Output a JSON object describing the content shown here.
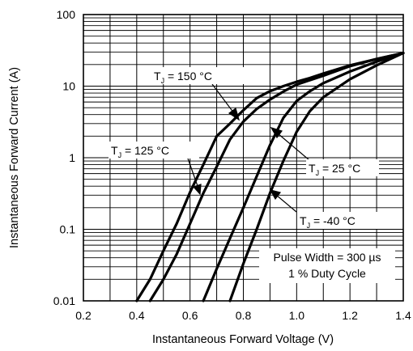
{
  "chart_data": {
    "type": "line",
    "xlabel": "Instantaneous Forward Voltage (V)",
    "ylabel": "Instantaneous Forward Current (A)",
    "xlim": [
      0.2,
      1.4
    ],
    "ylim": [
      0.01,
      100
    ],
    "yscale": "log",
    "x_ticks": [
      "0.2",
      "0.4",
      "0.6",
      "0.8",
      "1.0",
      "1.2",
      "1.4"
    ],
    "y_ticks": [
      "0.01",
      "0.1",
      "1",
      "10",
      "100"
    ],
    "grid": true,
    "series": [
      {
        "name": "TJ = 150 °C",
        "x": [
          0.4,
          0.45,
          0.5,
          0.55,
          0.6,
          0.65,
          0.7,
          0.75,
          0.8,
          0.85,
          0.9,
          0.95,
          1.0,
          1.05,
          1.1,
          1.2,
          1.3,
          1.4
        ],
        "y": [
          0.01,
          0.02,
          0.05,
          0.12,
          0.33,
          0.8,
          2.0,
          3.0,
          4.6,
          6.8,
          8.5,
          10.0,
          11.5,
          13.0,
          15.0,
          19.5,
          24.0,
          29.0
        ]
      },
      {
        "name": "TJ = 125 °C",
        "x": [
          0.45,
          0.5,
          0.55,
          0.6,
          0.65,
          0.7,
          0.75,
          0.8,
          0.85,
          0.9,
          0.95,
          1.0,
          1.1,
          1.2,
          1.3,
          1.4
        ],
        "y": [
          0.01,
          0.02,
          0.045,
          0.12,
          0.32,
          0.75,
          1.8,
          3.2,
          4.8,
          6.5,
          8.4,
          10.5,
          14.0,
          19.0,
          24.0,
          29.0
        ]
      },
      {
        "name": "TJ = 25 °C",
        "x": [
          0.65,
          0.7,
          0.75,
          0.8,
          0.85,
          0.9,
          0.95,
          1.0,
          1.05,
          1.1,
          1.2,
          1.3,
          1.4
        ],
        "y": [
          0.01,
          0.028,
          0.075,
          0.2,
          0.55,
          1.5,
          3.6,
          6.2,
          8.5,
          11.0,
          16.0,
          22.0,
          29.0
        ]
      },
      {
        "name": "TJ = -40 °C",
        "x": [
          0.75,
          0.8,
          0.85,
          0.9,
          0.95,
          1.0,
          1.05,
          1.1,
          1.2,
          1.3,
          1.4
        ],
        "y": [
          0.01,
          0.033,
          0.1,
          0.32,
          0.9,
          2.3,
          4.5,
          7.0,
          12.5,
          19.5,
          29.0
        ]
      }
    ],
    "annotations": [
      {
        "main": "T",
        "sub": "J",
        "rest": " = 150 °C"
      },
      {
        "main": "T",
        "sub": "J",
        "rest": " = 125 °C"
      },
      {
        "main": "T",
        "sub": "J",
        "rest": " = 25 °C"
      },
      {
        "main": "T",
        "sub": "J",
        "rest": " = -40 °C"
      }
    ],
    "note": [
      "Pulse Width = 300 µs",
      "1 % Duty Cycle"
    ]
  }
}
